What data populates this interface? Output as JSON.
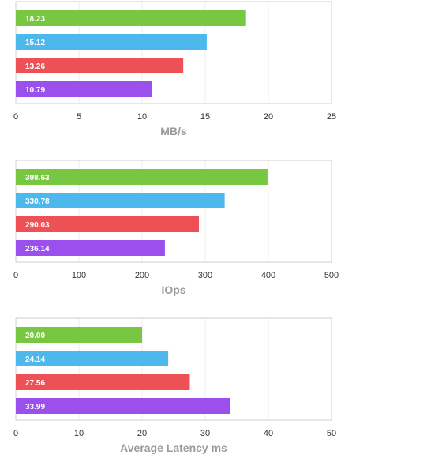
{
  "colors": [
    "#77c742",
    "#4db8ec",
    "#ee5155",
    "#9b4fec"
  ],
  "chart_data": [
    {
      "type": "bar",
      "orientation": "horizontal",
      "xlabel": "MB/s",
      "xlim": [
        0,
        25
      ],
      "ticks": [
        "0",
        "5",
        "10",
        "15",
        "20",
        "25"
      ],
      "tick_values": [
        0,
        5,
        10,
        15,
        20,
        25
      ],
      "values": [
        18.23,
        15.12,
        13.26,
        10.79
      ],
      "labels": [
        "18.23",
        "15.12",
        "13.26",
        "10.79"
      ],
      "grid": true
    },
    {
      "type": "bar",
      "orientation": "horizontal",
      "xlabel": "IOps",
      "xlim": [
        0,
        500
      ],
      "ticks": [
        "0",
        "100",
        "200",
        "300",
        "400",
        "500"
      ],
      "tick_values": [
        0,
        100,
        200,
        300,
        400,
        500
      ],
      "values": [
        398.63,
        330.78,
        290.03,
        236.14
      ],
      "labels": [
        "398.63",
        "330.78",
        "290.03",
        "236.14"
      ],
      "grid": true
    },
    {
      "type": "bar",
      "orientation": "horizontal",
      "xlabel": "Average Latency ms",
      "xlim": [
        0,
        50
      ],
      "ticks": [
        "0",
        "10",
        "20",
        "30",
        "40",
        "50"
      ],
      "tick_values": [
        0,
        10,
        20,
        30,
        40,
        50
      ],
      "values": [
        20.0,
        24.14,
        27.56,
        33.99
      ],
      "labels": [
        "20.00",
        "24.14",
        "27.56",
        "33.99"
      ],
      "grid": true
    }
  ]
}
